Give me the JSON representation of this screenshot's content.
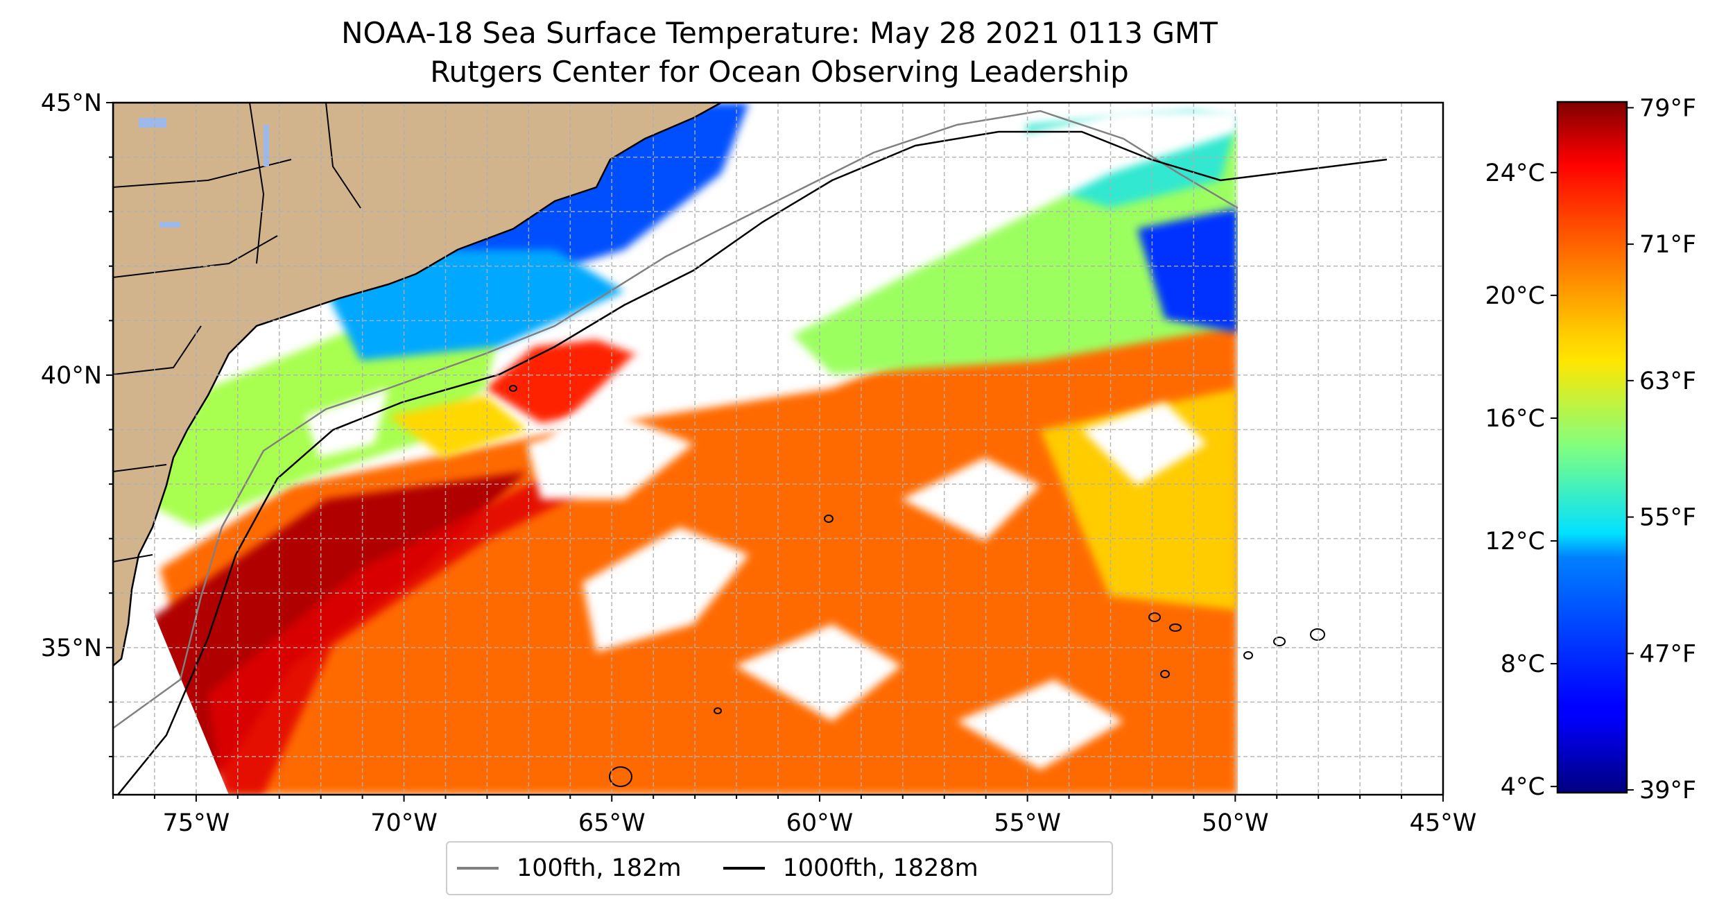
{
  "title": {
    "line1": "NOAA-18 Sea Surface Temperature: May 28 2021 0113 GMT",
    "line2": "Rutgers Center for Ocean Observing Leadership"
  },
  "map": {
    "lon_range": [
      -77,
      -45
    ],
    "lat_range": [
      32.3,
      45
    ],
    "lon_tick_labels": [
      {
        "lon": -75,
        "label": "75°W"
      },
      {
        "lon": -70,
        "label": "70°W"
      },
      {
        "lon": -65,
        "label": "65°W"
      },
      {
        "lon": -60,
        "label": "60°W"
      },
      {
        "lon": -55,
        "label": "55°W"
      },
      {
        "lon": -50,
        "label": "50°W"
      },
      {
        "lon": -45,
        "label": "45°W"
      }
    ],
    "lat_tick_labels": [
      {
        "lat": 45,
        "label": "45°N"
      },
      {
        "lat": 40,
        "label": "40°N"
      },
      {
        "lat": 35,
        "label": "35°N"
      }
    ],
    "land_color": "#d2b48c",
    "gridlines": "dashed grey, every 1 degree"
  },
  "legend": {
    "items": [
      {
        "label": "100fth, 182m",
        "color": "#808080"
      },
      {
        "label": "1000fth, 1828m",
        "color": "#000000"
      }
    ]
  },
  "colorbar": {
    "colormap": "jet",
    "celsius_range": [
      3.8,
      26.3
    ],
    "celsius_labels": [
      "24°C",
      "20°C",
      "16°C",
      "12°C",
      "8°C",
      "4°C"
    ],
    "celsius_values": [
      24,
      20,
      16,
      12,
      8,
      4
    ],
    "fahrenheit_labels": [
      "79°F",
      "71°F",
      "63°F",
      "55°F",
      "47°F",
      "39°F"
    ],
    "fahrenheit_values": [
      79,
      71,
      63,
      55,
      47,
      39
    ]
  }
}
